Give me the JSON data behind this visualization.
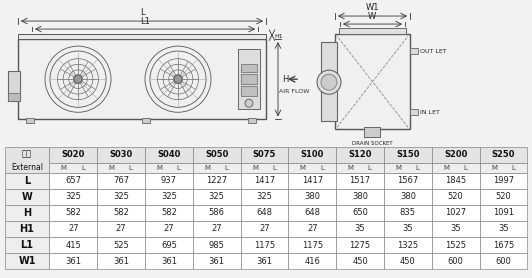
{
  "row_labels": [
    "L",
    "W",
    "H",
    "H1",
    "L1",
    "W1"
  ],
  "col_headers": [
    "S020",
    "S030",
    "S040",
    "S050",
    "S075",
    "S100",
    "S120",
    "S150",
    "S200",
    "S250"
  ],
  "table_data": [
    [
      657,
      767,
      937,
      1227,
      1417,
      1417,
      1517,
      1567,
      1845,
      1997
    ],
    [
      325,
      325,
      325,
      325,
      325,
      380,
      380,
      380,
      520,
      520
    ],
    [
      582,
      582,
      582,
      586,
      648,
      648,
      650,
      835,
      1027,
      1091
    ],
    [
      27,
      27,
      27,
      27,
      27,
      27,
      35,
      35,
      35,
      35
    ],
    [
      415,
      525,
      695,
      985,
      1175,
      1175,
      1275,
      1325,
      1525,
      1675
    ],
    [
      361,
      361,
      361,
      361,
      361,
      416,
      450,
      450,
      600,
      600
    ]
  ],
  "bg_color": "#f2f2f2",
  "body_fc": "#f8f8f8",
  "table_header_bg": "#e0e0e0",
  "table_row_label_bg": "#eeeeee",
  "table_border": "#aaaaaa"
}
